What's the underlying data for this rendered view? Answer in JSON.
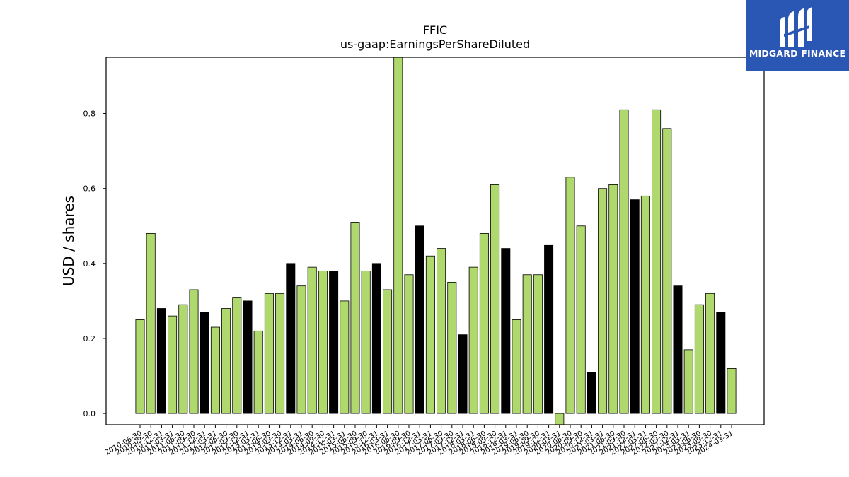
{
  "chart_data": {
    "type": "bar",
    "title": "FFIC",
    "subtitle": "us-gaap:EarningsPerShareDiluted",
    "xlabel": "",
    "ylabel": "USD / shares",
    "ylim": [
      -0.03,
      0.95
    ],
    "yticks": [
      0.0,
      0.2,
      0.4,
      0.6,
      0.8
    ],
    "ytick_labels": [
      "0.0",
      "0.2",
      "0.4",
      "0.6",
      "0.8"
    ],
    "grid": false,
    "legend": "none",
    "colors": {
      "quarter": "#b0d96d",
      "annual": "#000000"
    },
    "categories": [
      "2010-06-30",
      "2010-09-30",
      "2010-12-31",
      "2011-03-31",
      "2011-06-30",
      "2011-09-30",
      "2011-12-31",
      "2012-03-31",
      "2012-06-30",
      "2012-09-30",
      "2012-12-31",
      "2013-03-31",
      "2013-06-30",
      "2013-09-30",
      "2013-12-31",
      "2014-03-31",
      "2014-06-30",
      "2014-09-30",
      "2014-12-31",
      "2015-03-31",
      "2015-06-30",
      "2015-09-30",
      "2015-12-31",
      "2016-03-31",
      "2016-06-30",
      "2016-09-30",
      "2016-12-31",
      "2017-03-31",
      "2017-06-30",
      "2017-09-30",
      "2017-12-31",
      "2018-03-31",
      "2018-06-30",
      "2018-09-30",
      "2018-12-31",
      "2019-03-31",
      "2019-06-30",
      "2019-09-30",
      "2019-12-31",
      "2020-03-31",
      "2020-06-30",
      "2020-09-30",
      "2020-12-31",
      "2021-03-31",
      "2021-06-30",
      "2021-09-30",
      "2021-12-31",
      "2022-03-31",
      "2022-06-30",
      "2022-09-30",
      "2022-12-31",
      "2023-03-31",
      "2023-06-30",
      "2023-09-30",
      "2023-12-31",
      "2024-03-31"
    ],
    "values": [
      0.25,
      0.48,
      0.28,
      0.26,
      0.29,
      0.33,
      0.27,
      0.23,
      0.28,
      0.31,
      0.3,
      0.22,
      0.32,
      0.32,
      0.4,
      0.34,
      0.39,
      0.38,
      0.38,
      0.3,
      0.51,
      0.38,
      0.4,
      0.33,
      0.96,
      0.37,
      0.5,
      0.42,
      0.44,
      0.35,
      0.21,
      0.39,
      0.48,
      0.61,
      0.44,
      0.25,
      0.37,
      0.37,
      0.45,
      -0.03,
      0.63,
      0.5,
      0.11,
      0.6,
      0.61,
      0.81,
      0.57,
      0.58,
      0.81,
      0.76,
      0.34,
      0.17,
      0.29,
      0.32,
      0.27,
      0.12
    ],
    "annual": [
      false,
      false,
      true,
      false,
      false,
      false,
      true,
      false,
      false,
      false,
      true,
      false,
      false,
      false,
      true,
      false,
      false,
      false,
      true,
      false,
      false,
      false,
      true,
      false,
      false,
      false,
      true,
      false,
      false,
      false,
      true,
      false,
      false,
      false,
      true,
      false,
      false,
      false,
      true,
      false,
      false,
      false,
      true,
      false,
      false,
      false,
      true,
      false,
      false,
      false,
      true,
      false,
      false,
      false,
      true,
      false
    ]
  },
  "logo": {
    "text": "MIDGARD FINANCE"
  }
}
